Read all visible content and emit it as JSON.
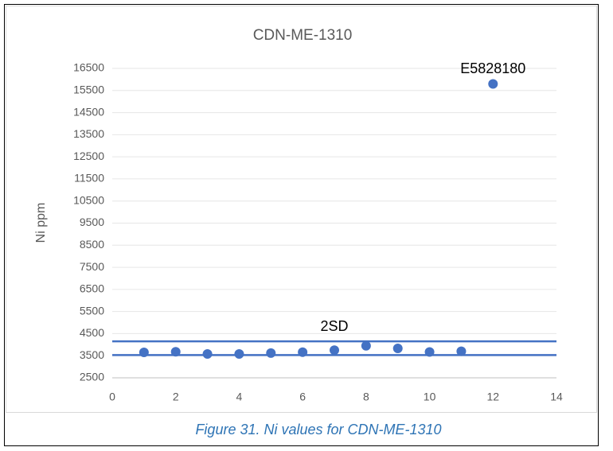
{
  "chart_data": {
    "type": "scatter",
    "title": "CDN-ME-1310",
    "y_label": "Ni ppm",
    "x": [
      1,
      2,
      3,
      4,
      5,
      6,
      7,
      8,
      9,
      10,
      11,
      12
    ],
    "values": [
      3650,
      3680,
      3580,
      3580,
      3620,
      3660,
      3750,
      3950,
      3830,
      3670,
      3700,
      15800
    ],
    "color": "#4472c4",
    "lines": [
      {
        "x": [
          0,
          14
        ],
        "values": [
          4150,
          4150
        ],
        "color": "#4472c4"
      },
      {
        "x": [
          0,
          14
        ],
        "values": [
          3530,
          3530
        ],
        "color": "#4472c4"
      }
    ],
    "annotations": [
      {
        "text": "E5828180",
        "x": 12,
        "y": 15800
      },
      {
        "text": "2SD",
        "x": 7,
        "y": 4150
      }
    ],
    "xlim": [
      0,
      14
    ],
    "xticks": [
      0,
      2,
      4,
      6,
      8,
      10,
      12,
      14
    ],
    "ylim": [
      2500,
      16500
    ],
    "yticks": [
      2500,
      3500,
      4500,
      5500,
      6500,
      7500,
      8500,
      9500,
      10500,
      11500,
      12500,
      13500,
      14500,
      15500,
      16500
    ],
    "grid": true
  },
  "caption": "Figure 31. Ni values for CDN-ME-1310"
}
